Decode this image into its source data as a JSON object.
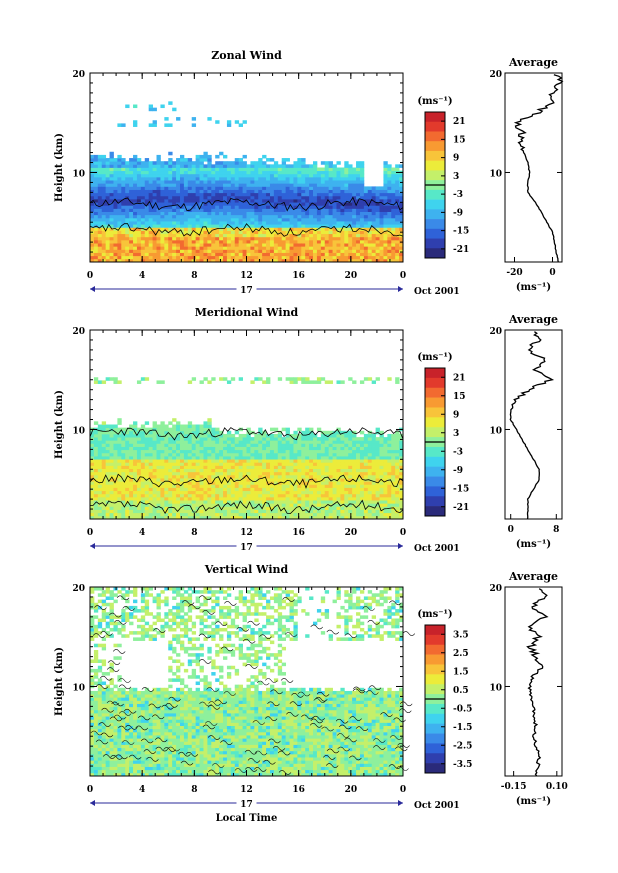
{
  "figure": {
    "date_label": "Oct 2001",
    "day_label": "17",
    "xlabel": "Local Time",
    "ylabel": "Height (km)",
    "unit": "(ms⁻¹)",
    "profile_title": "Average"
  },
  "palette": [
    "#2a2a7a",
    "#2f3fae",
    "#2f62d8",
    "#3a8ae8",
    "#3eb2ef",
    "#3fd3ee",
    "#57e8c8",
    "#8ef09c",
    "#c4f06a",
    "#ecec3a",
    "#f8c43a",
    "#f89a32",
    "#f26a30",
    "#e23a2c",
    "#c8222a"
  ],
  "chart_data": [
    {
      "type": "heatmap",
      "name": "zonal",
      "title": "Zonal Wind",
      "xlabel": "",
      "ylabel": "Height (km)",
      "xlim": [
        0,
        24
      ],
      "ylim": [
        1,
        20
      ],
      "xticks": [
        "0",
        "4",
        "8",
        "12",
        "16",
        "20",
        "0"
      ],
      "yticks": [
        "10",
        "20"
      ],
      "colorbar_ticks": [
        "21",
        "15",
        "9",
        "3",
        "-3",
        "-9",
        "-15",
        "-21"
      ],
      "color_range": [
        -21,
        21
      ],
      "profile": {
        "xlim": [
          -25,
          5
        ],
        "xticks": [
          "-20",
          "0"
        ],
        "height_km": [
          1,
          2,
          3,
          4,
          5,
          6,
          7,
          8,
          9,
          10,
          11,
          12,
          13,
          14,
          15,
          16,
          17,
          18,
          19,
          20
        ],
        "wind_ms": [
          3,
          2,
          1,
          0,
          -3,
          -6,
          -9,
          -13,
          -13,
          -12,
          -13,
          -15,
          -17,
          -16,
          -19,
          -8,
          -1,
          0,
          4,
          2
        ]
      }
    },
    {
      "type": "heatmap",
      "name": "meridional",
      "title": "Meridional Wind",
      "xlabel": "",
      "ylabel": "Height (km)",
      "xlim": [
        0,
        24
      ],
      "ylim": [
        1,
        20
      ],
      "xticks": [
        "0",
        "4",
        "8",
        "12",
        "16",
        "20",
        "0"
      ],
      "yticks": [
        "10",
        "20"
      ],
      "colorbar_ticks": [
        "21",
        "15",
        "9",
        "3",
        "-3",
        "-9",
        "-15",
        "-21"
      ],
      "color_range": [
        -21,
        21
      ],
      "profile": {
        "xlim": [
          -1,
          9
        ],
        "xticks": [
          "0",
          "8"
        ],
        "height_km": [
          1,
          2,
          3,
          4,
          5,
          6,
          7,
          8,
          9,
          10,
          11,
          12,
          13,
          14,
          15,
          16,
          17,
          18,
          19,
          20
        ],
        "wind_ms": [
          3,
          3,
          3,
          4,
          5,
          5,
          4,
          3,
          2,
          1,
          0,
          0,
          1,
          3,
          7,
          4,
          6,
          3,
          5,
          4
        ]
      }
    },
    {
      "type": "heatmap",
      "name": "vertical",
      "title": "Vertical Wind",
      "xlabel": "Local Time",
      "ylabel": "Height (km)",
      "xlim": [
        0,
        24
      ],
      "ylim": [
        1,
        20
      ],
      "xticks": [
        "0",
        "4",
        "8",
        "12",
        "16",
        "20",
        "0"
      ],
      "yticks": [
        "10",
        "20"
      ],
      "colorbar_ticks": [
        "3.5",
        "2.5",
        "1.5",
        "0.5",
        "-0.5",
        "-1.5",
        "-2.5",
        "-3.5"
      ],
      "color_range": [
        -3.5,
        3.5
      ],
      "profile": {
        "xlim": [
          -0.2,
          0.13
        ],
        "xticks": [
          "-0.15",
          "0.10"
        ],
        "height_km": [
          1,
          2,
          3,
          4,
          5,
          6,
          7,
          8,
          9,
          10,
          11,
          12,
          13,
          14,
          15,
          16,
          17,
          18,
          19,
          20
        ],
        "wind_ms": [
          -0.02,
          -0.01,
          0.0,
          -0.02,
          -0.03,
          -0.02,
          -0.04,
          -0.03,
          -0.05,
          -0.06,
          -0.04,
          0.02,
          -0.02,
          -0.05,
          -0.01,
          -0.06,
          0.03,
          -0.04,
          0.03,
          0.0
        ]
      }
    }
  ]
}
